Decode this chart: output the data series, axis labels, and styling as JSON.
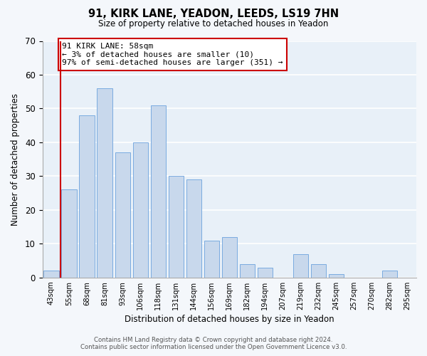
{
  "title": "91, KIRK LANE, YEADON, LEEDS, LS19 7HN",
  "subtitle": "Size of property relative to detached houses in Yeadon",
  "xlabel": "Distribution of detached houses by size in Yeadon",
  "ylabel": "Number of detached properties",
  "categories": [
    "43sqm",
    "55sqm",
    "68sqm",
    "81sqm",
    "93sqm",
    "106sqm",
    "118sqm",
    "131sqm",
    "144sqm",
    "156sqm",
    "169sqm",
    "182sqm",
    "194sqm",
    "207sqm",
    "219sqm",
    "232sqm",
    "245sqm",
    "257sqm",
    "270sqm",
    "282sqm",
    "295sqm"
  ],
  "values": [
    2,
    26,
    48,
    56,
    37,
    40,
    51,
    30,
    29,
    11,
    12,
    4,
    3,
    0,
    7,
    4,
    1,
    0,
    0,
    2,
    0
  ],
  "bar_color": "#c8d8ec",
  "bar_edge_color": "#7aabe0",
  "ylim": [
    0,
    70
  ],
  "yticks": [
    0,
    10,
    20,
    30,
    40,
    50,
    60,
    70
  ],
  "property_line_color": "#cc0000",
  "annotation_title": "91 KIRK LANE: 58sqm",
  "annotation_line1": "← 3% of detached houses are smaller (10)",
  "annotation_line2": "97% of semi-detached houses are larger (351) →",
  "annotation_box_color": "#ffffff",
  "annotation_box_edge": "#cc0000",
  "footer_line1": "Contains HM Land Registry data © Crown copyright and database right 2024.",
  "footer_line2": "Contains public sector information licensed under the Open Government Licence v3.0.",
  "plot_bg_color": "#e8f0f8",
  "fig_bg_color": "#f4f7fb"
}
